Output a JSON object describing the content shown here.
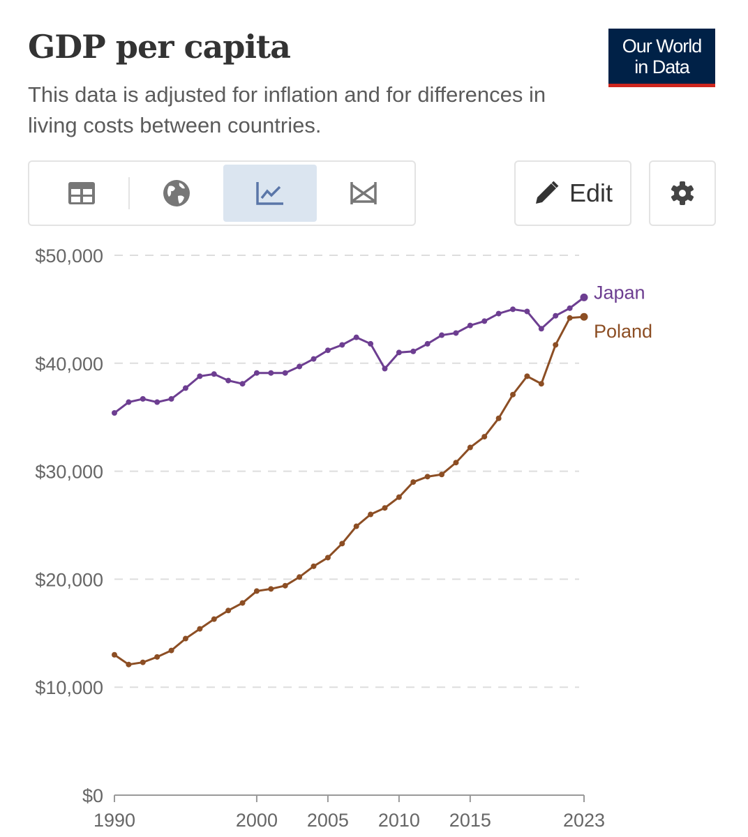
{
  "header": {
    "title": "GDP per capita",
    "subtitle": "This data is adjusted for inflation and for differences in living costs between countries.",
    "logo_line1": "Our World",
    "logo_line2": "in Data"
  },
  "toolbar": {
    "tabs": [
      {
        "icon": "table-icon"
      },
      {
        "icon": "globe-icon"
      },
      {
        "icon": "line-chart-icon",
        "active": true
      },
      {
        "icon": "slope-chart-icon"
      }
    ],
    "edit_label": "Edit",
    "settings_icon": "gear-icon"
  },
  "colors": {
    "Japan": "#6d3e91",
    "Poland": "#8c4e24",
    "grid": "#dddddd",
    "logo_bg": "#002147",
    "logo_accent": "#ce261e"
  },
  "chart_data": {
    "type": "line",
    "title": "GDP per capita",
    "ylim": [
      0,
      50000
    ],
    "xlim": [
      1990,
      2023
    ],
    "yticks": [
      {
        "v": 0,
        "label": "$0"
      },
      {
        "v": 10000,
        "label": "$10,000"
      },
      {
        "v": 20000,
        "label": "$20,000"
      },
      {
        "v": 30000,
        "label": "$30,000"
      },
      {
        "v": 40000,
        "label": "$40,000"
      },
      {
        "v": 50000,
        "label": "$50,000"
      }
    ],
    "xticks": [
      {
        "v": 1990,
        "label": "1990"
      },
      {
        "v": 2000,
        "label": "2000"
      },
      {
        "v": 2005,
        "label": "2005"
      },
      {
        "v": 2010,
        "label": "2010"
      },
      {
        "v": 2015,
        "label": "2015"
      },
      {
        "v": 2023,
        "label": "2023"
      }
    ],
    "grid": true,
    "legend": "inline-right",
    "x": [
      1990,
      1991,
      1992,
      1993,
      1994,
      1995,
      1996,
      1997,
      1998,
      1999,
      2000,
      2001,
      2002,
      2003,
      2004,
      2005,
      2006,
      2007,
      2008,
      2009,
      2010,
      2011,
      2012,
      2013,
      2014,
      2015,
      2016,
      2017,
      2018,
      2019,
      2020,
      2021,
      2022,
      2023
    ],
    "series": [
      {
        "name": "Japan",
        "values": [
          35400,
          36400,
          36700,
          36400,
          36700,
          37700,
          38800,
          39000,
          38400,
          38100,
          39100,
          39100,
          39100,
          39700,
          40400,
          41200,
          41700,
          42400,
          41800,
          39500,
          41000,
          41100,
          41800,
          42600,
          42800,
          43500,
          43900,
          44600,
          45000,
          44800,
          43200,
          44400,
          45100,
          46100
        ]
      },
      {
        "name": "Poland",
        "values": [
          13000,
          12100,
          12300,
          12800,
          13400,
          14500,
          15400,
          16300,
          17100,
          17800,
          18900,
          19100,
          19400,
          20200,
          21200,
          22000,
          23300,
          24900,
          26000,
          26600,
          27600,
          29000,
          29500,
          29700,
          30800,
          32200,
          33200,
          34900,
          37100,
          38800,
          38100,
          41700,
          44200,
          44300
        ]
      }
    ]
  }
}
